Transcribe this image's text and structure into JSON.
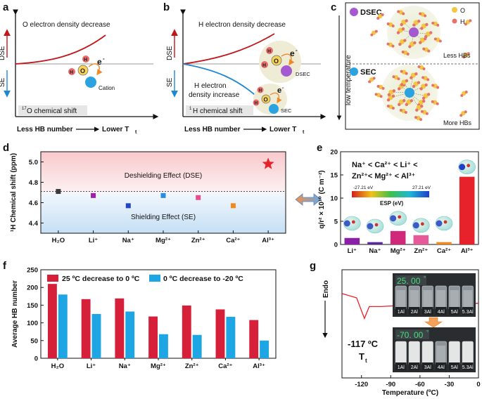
{
  "panels": {
    "a": {
      "letter": "a",
      "title": "O electron density decrease",
      "dse": "DSE",
      "se": "SE",
      "shift": "O chemical shift",
      "shift_sup": "17",
      "x_left": "Less HB number",
      "x_right": "Lower T",
      "x_sub": "t",
      "o": "O",
      "h": "H",
      "e": "e",
      "e_sup": "-",
      "cation": "Cation"
    },
    "b": {
      "letter": "b",
      "title": "H electron density decrease",
      "dse": "DSE",
      "se": "SE",
      "inc1": "H electron",
      "inc2": "density increase",
      "shift": "H chemical shift",
      "shift_sup": "1",
      "x_left": "Less HB number",
      "x_right": "Lower T",
      "x_sub": "t",
      "dsec": "DSEC",
      "sec": "SEC",
      "o": "O",
      "h": "H",
      "e": "e",
      "e_sup": "-"
    },
    "c": {
      "letter": "c",
      "ylabel": "low temperature",
      "dsec": "DSEC",
      "sec": "SEC",
      "legend_o": "O",
      "legend_h": "H",
      "less": "Less HBs",
      "more": "More HBs"
    },
    "e": {
      "letter": "e",
      "eq1": "Na⁺ < Ca²⁺ < Li⁺ <",
      "eq2": "Zn²⁺< Mg²⁺ < Al³⁺",
      "esp_min": "-27.21 eV",
      "esp_max": "27.21 eV",
      "esp_label": "ESP (eV)"
    },
    "g": {
      "letter": "g",
      "endo": "Endo",
      "temp1": "25. 00",
      "temp2": "-70. 00",
      "temp_unit": "°",
      "tt_val": "-117 ºC",
      "tt": "T",
      "tt_sub": "t",
      "vials": [
        "1Al",
        "2Al",
        "3Al",
        "4Al",
        "5Al",
        "5.3Al"
      ]
    }
  },
  "colors": {
    "red": "#d6203a",
    "blue": "#1ea6e4",
    "dark_red": "#c0161c"
  },
  "chart_data": [
    {
      "panel": "d",
      "type": "scatter",
      "categories": [
        "H₂O",
        "Li⁺",
        "Na⁺",
        "Mg²⁺",
        "Zn²⁺",
        "Ca²⁺",
        "Al³⁺"
      ],
      "values": [
        4.71,
        4.67,
        4.57,
        4.67,
        4.65,
        4.57,
        4.98
      ],
      "colors": [
        "#3a3a3a",
        "#9c22a8",
        "#2146c7",
        "#2a8be0",
        "#e94c8e",
        "#f08a1c",
        "#e8222a"
      ],
      "ylabel": "¹H Chemical shift (ppm)",
      "ylim": [
        4.3,
        5.1
      ],
      "yticks": [
        4.4,
        4.6,
        4.8,
        5.0
      ],
      "reference": 4.71,
      "upper_label": "Deshielding Effect (DSE)",
      "lower_label": "Shielding Effect (SE)"
    },
    {
      "panel": "e",
      "type": "bar",
      "categories": [
        "Li⁺",
        "Na⁺",
        "Mg²⁺",
        "Zn²⁺",
        "Ca²⁺",
        "Al³⁺"
      ],
      "values": [
        1.4,
        0.5,
        2.9,
        2.0,
        0.5,
        14.6
      ],
      "colors": [
        "#8a1fa8",
        "#5a2a9c",
        "#d0297a",
        "#e75a9a",
        "#f08a1c",
        "#e8222a"
      ],
      "ylabel": "q/r² × 10¹⁰ (C m⁻²)",
      "ylim": [
        0,
        20
      ],
      "yticks": [
        0,
        5,
        10,
        15,
        20
      ]
    },
    {
      "panel": "f",
      "type": "bar",
      "categories": [
        "H₂O",
        "Li⁺",
        "Na⁺",
        "Mg²⁺",
        "Zn²⁺",
        "Ca²⁺",
        "Al³⁺"
      ],
      "series": [
        {
          "name": "25 ºC decrease to 0 ºC",
          "values": [
            210,
            167,
            169,
            118,
            149,
            138,
            108
          ],
          "color": "#d6203a"
        },
        {
          "name": "0 ºC decrease to -20 ºC",
          "values": [
            180,
            125,
            132,
            68,
            66,
            117,
            50
          ],
          "color": "#1ea6e4"
        }
      ],
      "ylabel": "Average HB number",
      "ylim": [
        0,
        250
      ],
      "yticks": [
        0,
        50,
        100,
        150,
        200,
        250
      ]
    },
    {
      "panel": "g",
      "type": "line",
      "x": [
        -140,
        -125,
        -117,
        -112,
        -100,
        -60,
        -20,
        0
      ],
      "y": [
        0.78,
        0.74,
        0.55,
        0.66,
        0.66,
        0.68,
        0.68,
        0.69
      ],
      "xlabel": "Temperature (ºC)",
      "xlim": [
        -140,
        0
      ],
      "xticks": [
        -120,
        -90,
        -60,
        -30,
        0
      ]
    }
  ]
}
